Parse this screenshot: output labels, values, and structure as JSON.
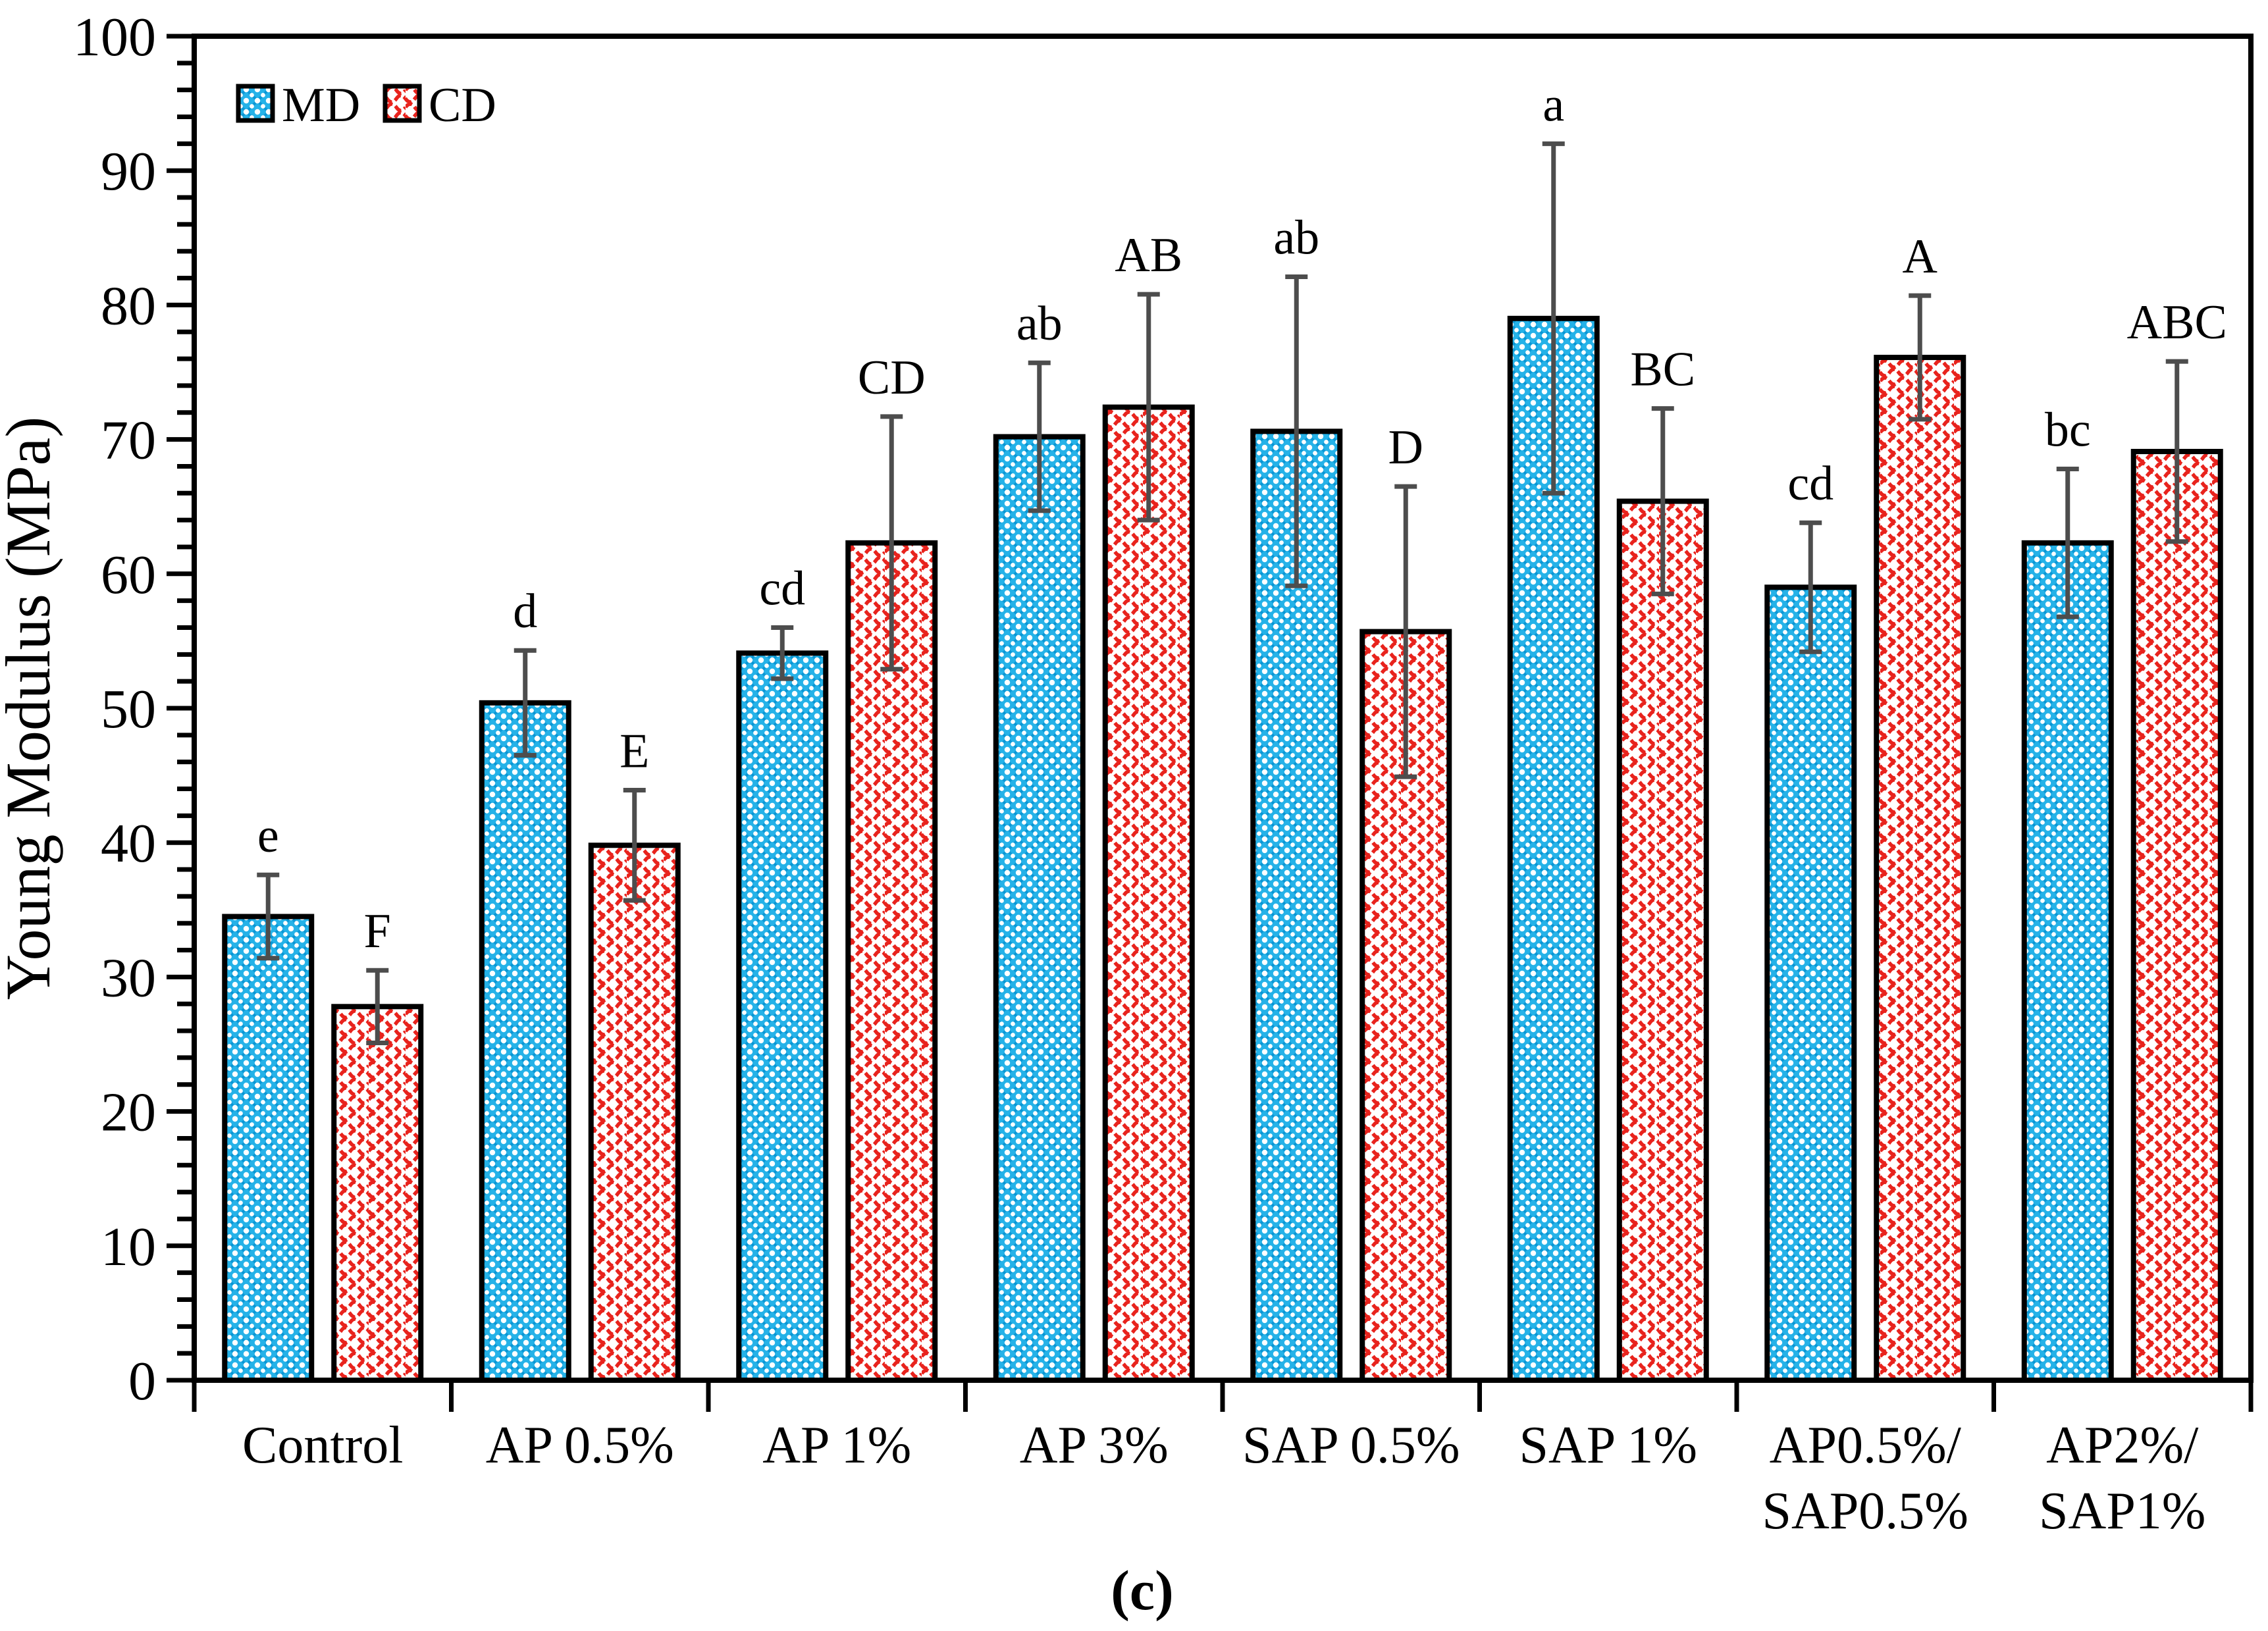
{
  "figure": {
    "caption": "(c)",
    "background": "#ffffff"
  },
  "legend": {
    "items": [
      {
        "label": "MD",
        "swatch": "blue-crosshatch-dots"
      },
      {
        "label": "CD",
        "swatch": "red-waves"
      }
    ],
    "text_color": "#5f5f5f",
    "position": "top-left-inside"
  },
  "colors": {
    "md_fill_base": "#25b2e8",
    "md_weave_line": "#0a97d5",
    "md_dot": "#ffffff",
    "cd_fill_base": "#ffffff",
    "cd_wave_red": "#e8231d",
    "axis_black": "#000000",
    "error_bar_gray": "#4d4d4d",
    "sig_label_color": "#111111"
  },
  "chart_data": {
    "type": "bar",
    "title": "",
    "xlabel": "",
    "ylabel": "Young Modulus (MPa)",
    "ylim": [
      0,
      100
    ],
    "y_major_tick_step": 10,
    "y_minor_tick_step": 2,
    "grid": false,
    "legend_position": "top-left-inside",
    "categories": [
      "Control",
      "AP 0.5%",
      "AP 1%",
      "AP 3%",
      "SAP 0.5%",
      "SAP 1%",
      "AP0.5%/SAP0.5%",
      "AP2%/SAP1%"
    ],
    "category_label_lines": [
      [
        "Control"
      ],
      [
        "AP 0.5%"
      ],
      [
        "AP 1%"
      ],
      [
        "AP 3%"
      ],
      [
        "SAP 0.5%"
      ],
      [
        "SAP 1%"
      ],
      [
        "AP0.5%/",
        "SAP0.5%"
      ],
      [
        "AP2%/",
        "SAP1%"
      ]
    ],
    "series": [
      {
        "name": "MD",
        "pattern": "blue-crosshatch-dots",
        "values": [
          34.5,
          50.4,
          54.1,
          70.2,
          70.6,
          79.0,
          59.0,
          62.3
        ],
        "errors": [
          3.1,
          3.9,
          1.9,
          5.5,
          11.5,
          13.0,
          4.8,
          5.5
        ],
        "sig_labels": [
          "e",
          "d",
          "cd",
          "ab",
          "ab",
          "a",
          "cd",
          "bc"
        ]
      },
      {
        "name": "CD",
        "pattern": "red-waves",
        "values": [
          27.8,
          39.8,
          62.3,
          72.4,
          55.7,
          65.4,
          76.1,
          69.1
        ],
        "errors": [
          2.7,
          4.1,
          9.4,
          8.4,
          10.8,
          6.9,
          4.6,
          6.7
        ],
        "sig_labels": [
          "F",
          "E",
          "CD",
          "AB",
          "D",
          "BC",
          "A",
          "ABC"
        ]
      }
    ]
  }
}
